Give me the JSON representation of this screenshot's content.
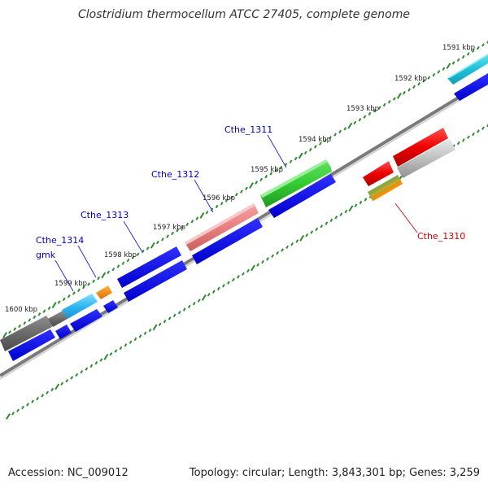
{
  "title": "Clostridium thermocellum ATCC 27405, complete genome",
  "footer": {
    "accession": "Accession: NC_009012",
    "stats": "Topology: circular; Length: 3,843,301 bp; Genes: 3,259"
  },
  "colors": {
    "backbone": "#808080",
    "tick": "#2e8b2e",
    "blue_gene": "#1010e0",
    "label_blue": "#0000cc",
    "label_red": "#cc0000"
  },
  "kbp_labels": [
    "1591 kbp",
    "1592 kbp",
    "1593 kbp",
    "1594 kbp",
    "1595 kbp",
    "1596 kbp",
    "1597 kbp",
    "1598 kbp",
    "1599 kbp",
    "1600 kbp"
  ],
  "gene_labels": [
    {
      "text": "Cthe_1311",
      "color": "#0000cc"
    },
    {
      "text": "Cthe_1312",
      "color": "#0000cc"
    },
    {
      "text": "Cthe_1313",
      "color": "#0000cc"
    },
    {
      "text": "Cthe_1314",
      "color": "#0000cc"
    },
    {
      "text": "gmk",
      "color": "#0000cc"
    },
    {
      "text": "Cthe_1310",
      "color": "#cc0000"
    }
  ]
}
